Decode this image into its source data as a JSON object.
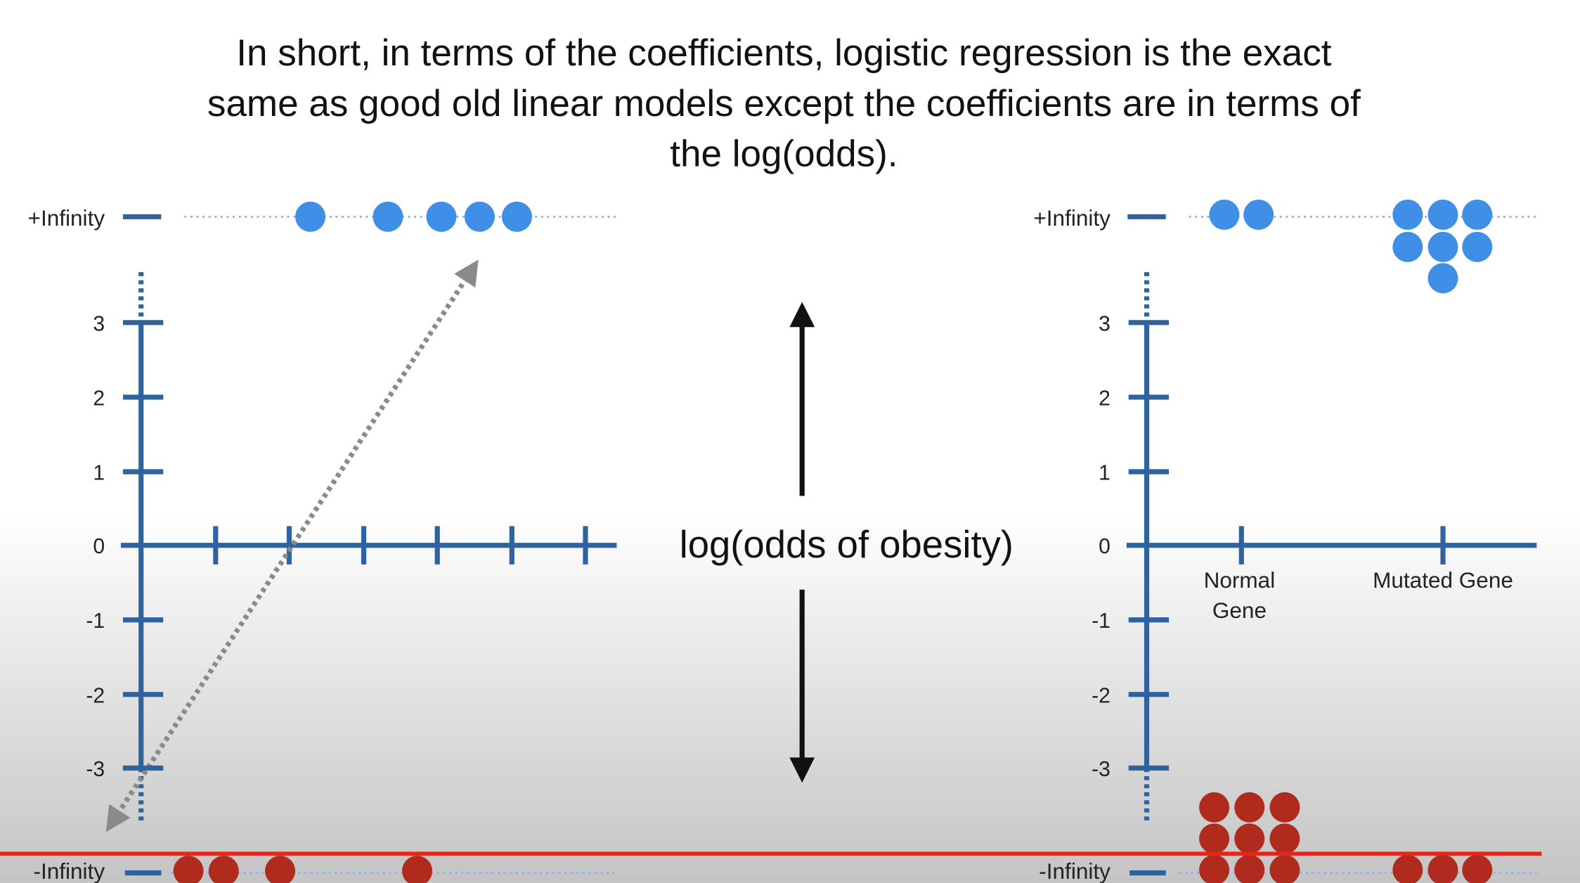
{
  "title_lines": [
    "In short, in terms of the coefficients, logistic regression is the exact",
    "same as good old linear models except the coefficients are in terms of",
    "the log(odds)."
  ],
  "left_plot": {
    "top_label": "+Infinity",
    "bottom_label": "-Infinity",
    "y_tick_labels": [
      "3",
      "2",
      "1",
      "0",
      "-1",
      "-2",
      "-3"
    ]
  },
  "center_label": "log(odds of obesity)",
  "right_plot": {
    "top_label": "+Infinity",
    "bottom_label": "-Infinity",
    "y_tick_labels": [
      "3",
      "2",
      "1",
      "0",
      "-1",
      "-2",
      "-3"
    ],
    "categories": [
      {
        "lines": [
          "Normal",
          "Gene"
        ]
      },
      {
        "lines": [
          "Mutated Gene"
        ]
      }
    ]
  }
}
